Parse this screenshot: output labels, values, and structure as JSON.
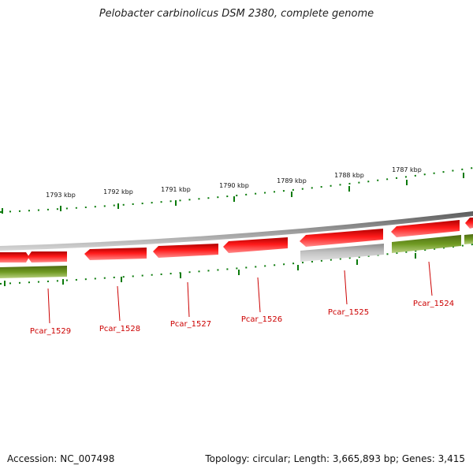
{
  "title": "Pelobacter carbinolicus DSM 2380, complete genome",
  "footer": {
    "accession": "Accession: NC_007498",
    "summary": "Topology: circular; Length: 3,665,893 bp; Genes: 3,415"
  },
  "kbp_ticks": [
    "1793 kbp",
    "1792 kbp",
    "1791 kbp",
    "1790 kbp",
    "1789 kbp",
    "1788 kbp",
    "1787 kbp"
  ],
  "genes": [
    {
      "id": "Pcar_1529"
    },
    {
      "id": "Pcar_1528"
    },
    {
      "id": "Pcar_1527"
    },
    {
      "id": "Pcar_1526"
    },
    {
      "id": "Pcar_1525"
    },
    {
      "id": "Pcar_1524"
    }
  ],
  "colors": {
    "backbone": "#808080",
    "cds": "#ee0000",
    "gene": "#6b8e23",
    "pseudo": "#b0b0b0",
    "ticks": "#0a7a0a",
    "label": "#cc0000"
  }
}
